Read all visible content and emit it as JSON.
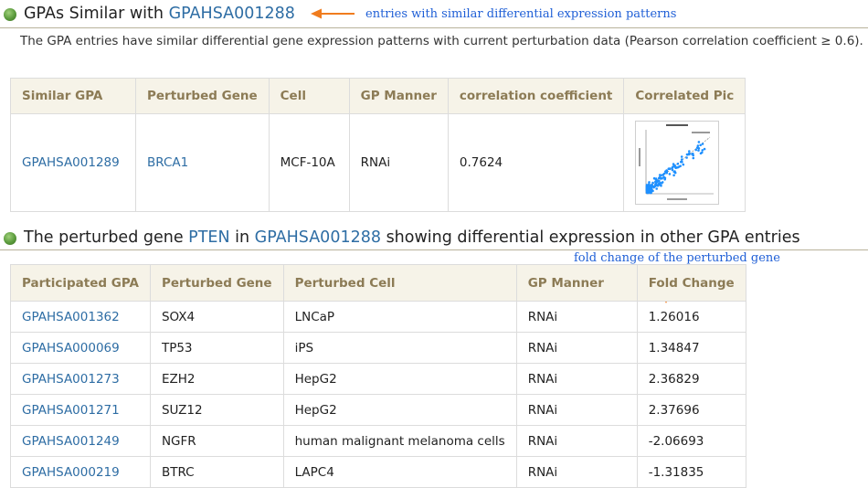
{
  "section1": {
    "title_prefix": "GPAs Similar with ",
    "title_link": "GPAHSA001288",
    "annotation": "entries with similar differential expression patterns",
    "description": "The GPA entries have similar differential gene expression patterns with current perturbation data (Pearson correlation coefficient ≥ 0.6).",
    "table": {
      "headers": [
        "Similar GPA",
        "Perturbed Gene",
        "Cell",
        "GP Manner",
        "correlation coefficient",
        "Correlated Pic"
      ],
      "rows": [
        {
          "gpa": "GPAHSA001289",
          "gene": "BRCA1",
          "cell": "MCF-10A",
          "manner": "RNAi",
          "corr": "0.7624"
        }
      ]
    }
  },
  "section2": {
    "title_part1": "The perturbed gene ",
    "gene_link": "PTEN",
    "title_part2": " in ",
    "gpa_link": "GPAHSA001288",
    "title_part3": " showing differential expression in other GPA entries",
    "annotation": "fold change of the perturbed gene",
    "table": {
      "headers": [
        "Participated GPA",
        "Perturbed Gene",
        "Perturbed Cell",
        "GP Manner",
        "Fold Change"
      ],
      "rows": [
        {
          "gpa": "GPAHSA001362",
          "gene": "SOX4",
          "cell": "LNCaP",
          "manner": "RNAi",
          "fc": "1.26016"
        },
        {
          "gpa": "GPAHSA000069",
          "gene": "TP53",
          "cell": "iPS",
          "manner": "RNAi",
          "fc": "1.34847"
        },
        {
          "gpa": "GPAHSA001273",
          "gene": "EZH2",
          "cell": "HepG2",
          "manner": "RNAi",
          "fc": "2.36829"
        },
        {
          "gpa": "GPAHSA001271",
          "gene": "SUZ12",
          "cell": "HepG2",
          "manner": "RNAi",
          "fc": "2.37696"
        },
        {
          "gpa": "GPAHSA001249",
          "gene": "NGFR",
          "cell": "human malignant melanoma cells",
          "manner": "RNAi",
          "fc": "-2.06693"
        },
        {
          "gpa": "GPAHSA000219",
          "gene": "BTRC",
          "cell": "LAPC4",
          "manner": "RNAi",
          "fc": "-1.31835"
        }
      ]
    }
  },
  "colors": {
    "link": "#2e6da4",
    "annotation": "#1f5fd6",
    "arrow": "#f07c1e",
    "header_bg": "#f6f3e8",
    "header_text": "#8c7b55"
  },
  "icons": {
    "section_bullet": "green-bullet-icon",
    "arrow": "arrow-icon"
  }
}
